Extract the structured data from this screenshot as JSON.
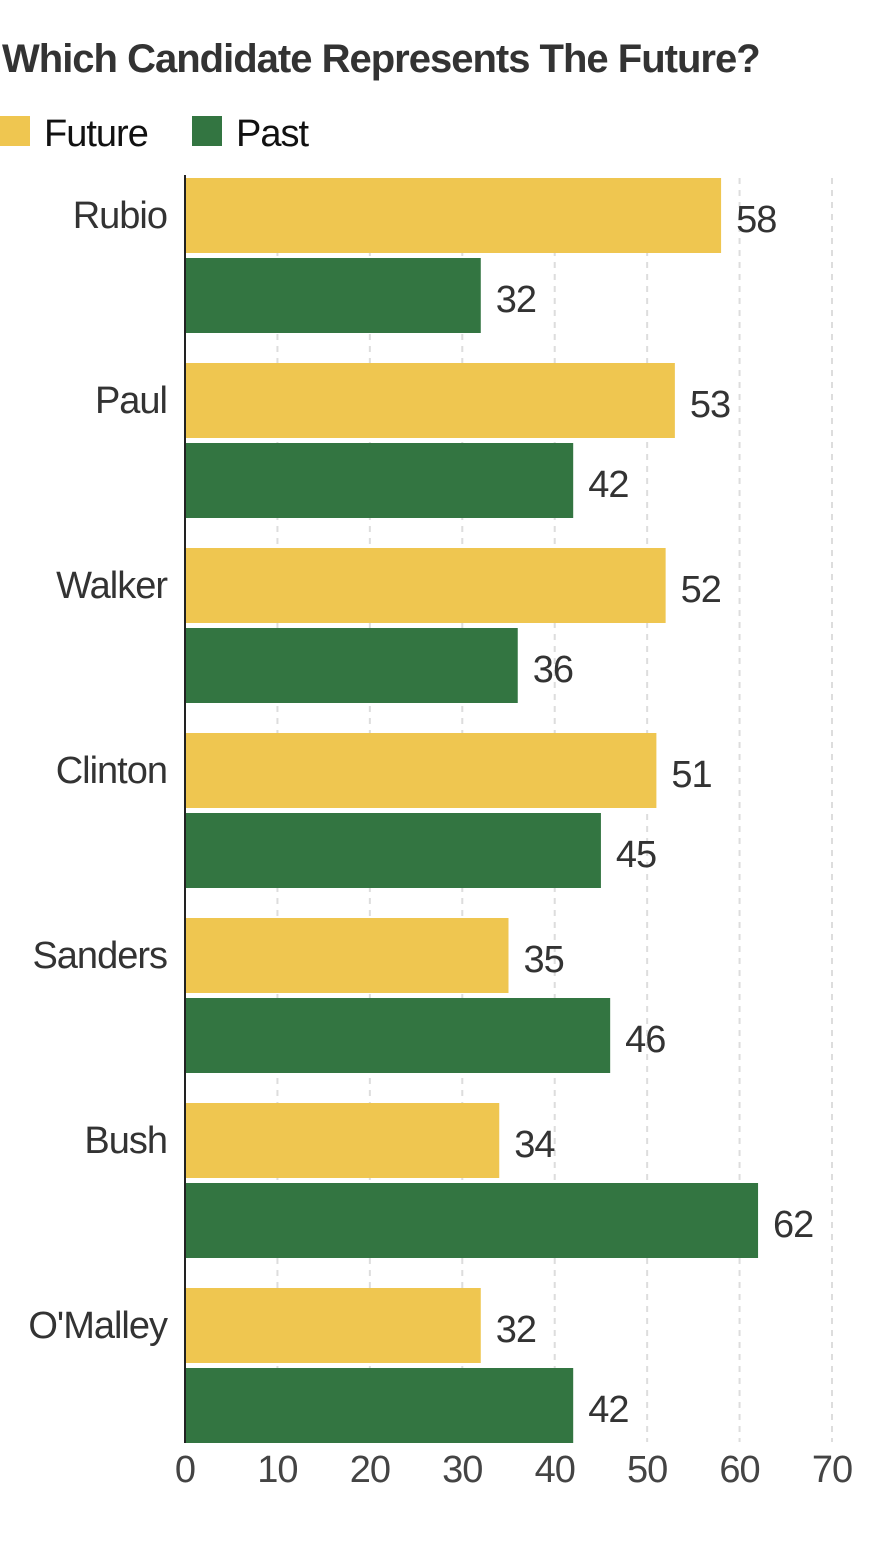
{
  "chart_data": {
    "type": "bar",
    "orientation": "horizontal",
    "title": "Which Candidate Represents The Future?",
    "categories": [
      "Rubio",
      "Paul",
      "Walker",
      "Clinton",
      "Sanders",
      "Bush",
      "O'Malley"
    ],
    "series": [
      {
        "name": "Future",
        "color": "#EFC650",
        "values": [
          58,
          53,
          52,
          51,
          35,
          34,
          32
        ]
      },
      {
        "name": "Past",
        "color": "#337541",
        "values": [
          32,
          42,
          36,
          45,
          46,
          62,
          42
        ]
      }
    ],
    "xlim": [
      0,
      70
    ],
    "xticks": [
      0,
      10,
      20,
      30,
      40,
      50,
      60,
      70
    ],
    "grid": "vertical dashed",
    "legend": "top-left",
    "data_labels": true
  }
}
